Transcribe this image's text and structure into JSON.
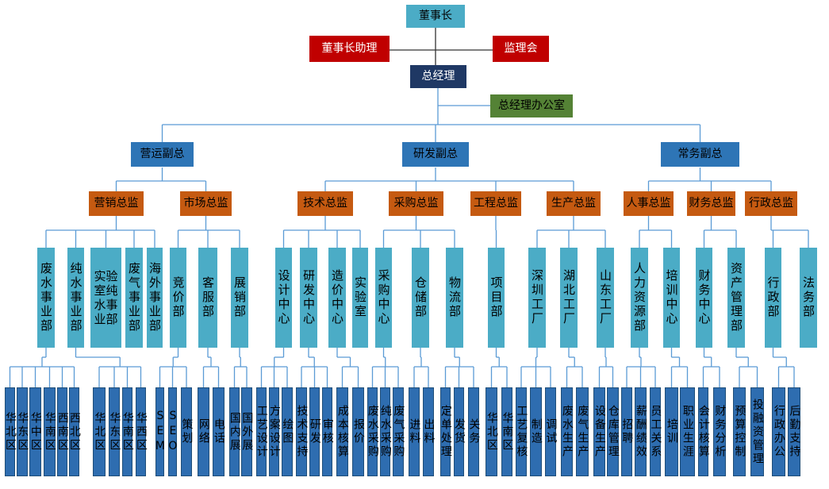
{
  "chairman": "董事长",
  "chairman_assistant": "董事长助理",
  "supervisory_board": "监理会",
  "general_manager": "总经理",
  "gm_office": "总经理办公室",
  "colors": {
    "chairman": "#4BACC6",
    "assistant": "#C00000",
    "gm": "#1F3864",
    "office": "#548235",
    "vp": "#2E75B6",
    "director": "#C55A11",
    "dept": "#4BACC6",
    "unit": "#2E6DB0",
    "line": "#5B9BD5"
  },
  "vps": [
    {
      "label": "营运副总",
      "directors": [
        {
          "label": "营销总监",
          "depts": [
            {
              "label": "废水事业部",
              "units": [
                "华北区",
                "华东区",
                "华中区",
                "华南区",
                "西南区",
                "西北区"
              ]
            },
            {
              "label": "纯水事业部",
              "units": [
                "华北区",
                "华东区",
                "华南区",
                "华西区"
              ]
            },
            {
              "label": "实验室纯水事业部",
              "units": []
            },
            {
              "label": "废气事业部",
              "units": []
            },
            {
              "label": "海外事业部",
              "units": []
            }
          ]
        },
        {
          "label": "市场总监",
          "depts": [
            {
              "label": "竞价部",
              "units": [
                "SEM",
                "SEO",
                "策划"
              ]
            },
            {
              "label": "客服部",
              "units": [
                "网络",
                "电话"
              ]
            },
            {
              "label": "展销部",
              "units": [
                "国内展",
                "国外展"
              ]
            }
          ]
        }
      ]
    },
    {
      "label": "研发副总",
      "directors": [
        {
          "label": "技术总监",
          "depts": [
            {
              "label": "设计中心",
              "units": [
                "工艺设计",
                "方案设计",
                "绘图"
              ]
            },
            {
              "label": "研发中心",
              "units": [
                "技术支持",
                "研发",
                "审核"
              ]
            },
            {
              "label": "造价中心",
              "units": [
                "成本核算",
                "报价"
              ]
            },
            {
              "label": "实验室",
              "units": []
            }
          ]
        },
        {
          "label": "采购总监",
          "depts": [
            {
              "label": "采购中心",
              "units": [
                "废水采购",
                "纯水采购",
                "废气采购"
              ]
            },
            {
              "label": "仓储部",
              "units": [
                "进料",
                "出料"
              ]
            },
            {
              "label": "物流部",
              "units": [
                "定单处理",
                "发货",
                "关务"
              ]
            }
          ]
        },
        {
          "label": "工程总监",
          "depts": [
            {
              "label": "项目部",
              "units": [
                "华北区",
                "华南区"
              ]
            }
          ]
        },
        {
          "label": "生产总监",
          "depts": [
            {
              "label": "深圳工厂",
              "units": [
                "工艺复核",
                "制造",
                "调试"
              ]
            },
            {
              "label": "湖北工厂",
              "units": [
                "废水生产",
                "废气生产"
              ]
            },
            {
              "label": "山东工厂",
              "units": [
                "设备生产",
                "仓库管理"
              ]
            }
          ]
        }
      ]
    },
    {
      "label": "常务副总",
      "directors": [
        {
          "label": "人事总监",
          "depts": [
            {
              "label": "人力资源部",
              "units": [
                "招聘",
                "薪酬绩效",
                "员工关系"
              ]
            },
            {
              "label": "培训中心",
              "units": [
                "培训",
                "职业生涯"
              ]
            }
          ]
        },
        {
          "label": "财务总监",
          "depts": [
            {
              "label": "财务中心",
              "units": [
                "会计核算",
                "财务分析"
              ]
            },
            {
              "label": "资产管理部",
              "units": [
                "预算控制",
                "投融资管理"
              ]
            }
          ]
        },
        {
          "label": "行政总监",
          "depts": [
            {
              "label": "行政部",
              "units": [
                "行政办公",
                "后勤支持"
              ]
            },
            {
              "label": "法务部",
              "units": []
            }
          ]
        }
      ]
    }
  ]
}
